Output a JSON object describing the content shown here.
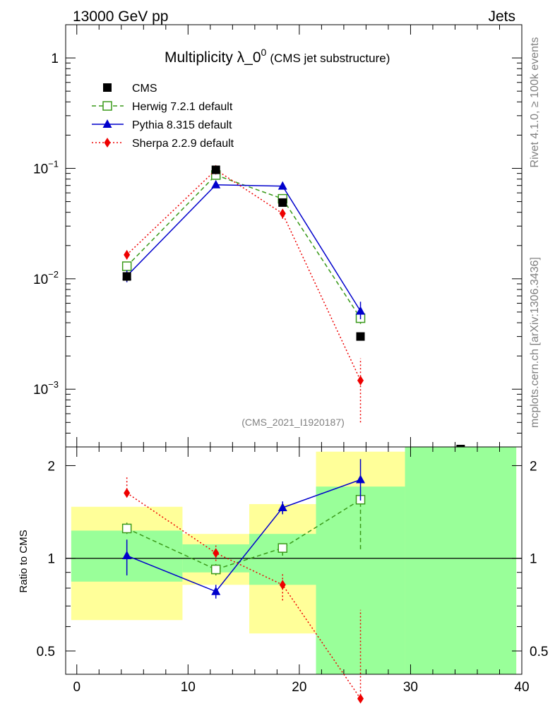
{
  "header": {
    "left": "13000 GeV pp",
    "right": "Jets"
  },
  "side_labels": {
    "rivet": "Rivet 4.1.0, ≥ 100k events",
    "mcplots": "mcplots.cern.ch [arXiv:1306.3436]"
  },
  "chart_data": {
    "type": "line",
    "title_main": "Multiplicity λ_0",
    "title_sup": "0",
    "title_sub": "(CMS jet substructure)",
    "analysis_id": "(CMS_2021_I1920187)",
    "x_ticks": [
      "0",
      "10",
      "20",
      "30",
      "40"
    ],
    "xlim": [
      -1,
      40
    ],
    "upper": {
      "yscale": "log",
      "ylim": [
        0.0003,
        2
      ],
      "y_ticks": [
        {
          "value": 1,
          "base": "1",
          "exp": ""
        },
        {
          "value": 0.1,
          "base": "10",
          "exp": "−1"
        },
        {
          "value": 0.01,
          "base": "10",
          "exp": "−2"
        },
        {
          "value": 0.001,
          "base": "10",
          "exp": "−3"
        }
      ]
    },
    "lower": {
      "ylabel": "Ratio to CMS",
      "ylim": [
        0.42,
        2.3
      ],
      "y_ticks": [
        "2",
        "1",
        "0.5"
      ],
      "y_tick_values": [
        2,
        1,
        0.5
      ],
      "bands": [
        {
          "x0": -0.5,
          "x1": 9.5,
          "yellow": [
            0.63,
            1.47
          ],
          "green": [
            0.84,
            1.23
          ]
        },
        {
          "x0": 9.5,
          "x1": 15.5,
          "yellow": [
            0.82,
            1.2
          ],
          "green": [
            0.9,
            1.11
          ]
        },
        {
          "x0": 15.5,
          "x1": 21.5,
          "yellow": [
            0.57,
            1.5
          ],
          "green": [
            0.82,
            1.2
          ]
        },
        {
          "x0": 21.5,
          "x1": 29.5,
          "yellow": [
            0.42,
            2.22
          ],
          "green": [
            0.42,
            1.71
          ]
        },
        {
          "x0": 29.5,
          "x1": 39.5,
          "yellow": [
            0.42,
            2.3
          ],
          "green": [
            0.42,
            2.3
          ]
        }
      ]
    },
    "series": [
      {
        "name": "CMS",
        "color": "#000000",
        "marker": "square",
        "x": [
          4.5,
          12.5,
          18.5,
          25.5,
          34.5
        ],
        "y": [
          0.0105,
          0.097,
          0.049,
          0.003,
          0.00028
        ],
        "yerr_lo": [
          0.0095,
          0.092,
          0.046,
          0.0028,
          null
        ],
        "yerr_hi": [
          0.0115,
          0.102,
          0.052,
          0.0032,
          null
        ],
        "ratio": [
          1,
          1,
          1,
          1,
          null
        ]
      },
      {
        "name": "Herwig 7.2.1 default",
        "color": "#3a9a1a",
        "marker": "open-square",
        "dash": "6,4",
        "x": [
          4.5,
          12.5,
          18.5,
          25.5
        ],
        "y": [
          0.013,
          0.087,
          0.053,
          0.0044
        ],
        "yerr_lo": [
          0.0123,
          0.083,
          0.05,
          0.0039
        ],
        "yerr_hi": [
          0.0137,
          0.091,
          0.056,
          0.0049
        ],
        "ratio": [
          1.25,
          0.92,
          1.08,
          1.55
        ],
        "ratio_lo": [
          1.2,
          0.88,
          1.02,
          1.07
        ],
        "ratio_hi": [
          1.31,
          0.96,
          1.13,
          1.55
        ]
      },
      {
        "name": "Pythia 8.315 default",
        "color": "#0000cc",
        "marker": "triangle",
        "dash": "",
        "x": [
          4.5,
          12.5,
          18.5,
          25.5
        ],
        "y": [
          0.0106,
          0.071,
          0.069,
          0.0051
        ],
        "yerr_lo": [
          0.0093,
          0.068,
          0.065,
          0.0043
        ],
        "yerr_hi": [
          0.0119,
          0.074,
          0.073,
          0.0062
        ],
        "ratio": [
          1.02,
          0.78,
          1.46,
          1.8
        ],
        "ratio_lo": [
          0.88,
          0.74,
          1.39,
          1.54
        ],
        "ratio_hi": [
          1.15,
          0.82,
          1.53,
          2.1
        ]
      },
      {
        "name": "Sherpa 2.2.9 default",
        "color": "#ee0000",
        "marker": "diamond",
        "dash": "2,3",
        "x": [
          4.5,
          12.5,
          18.5,
          25.5
        ],
        "y": [
          0.0165,
          0.097,
          0.039,
          0.0012
        ],
        "yerr_lo": [
          0.015,
          0.093,
          0.035,
          0.0005
        ],
        "yerr_hi": [
          0.0185,
          0.101,
          0.043,
          0.0019
        ],
        "ratio": [
          1.63,
          1.04,
          0.82,
          0.35
        ],
        "ratio_lo": [
          1.63,
          0.98,
          0.73,
          0.35
        ],
        "ratio_hi": [
          1.83,
          1.1,
          0.89,
          0.68
        ]
      }
    ]
  }
}
